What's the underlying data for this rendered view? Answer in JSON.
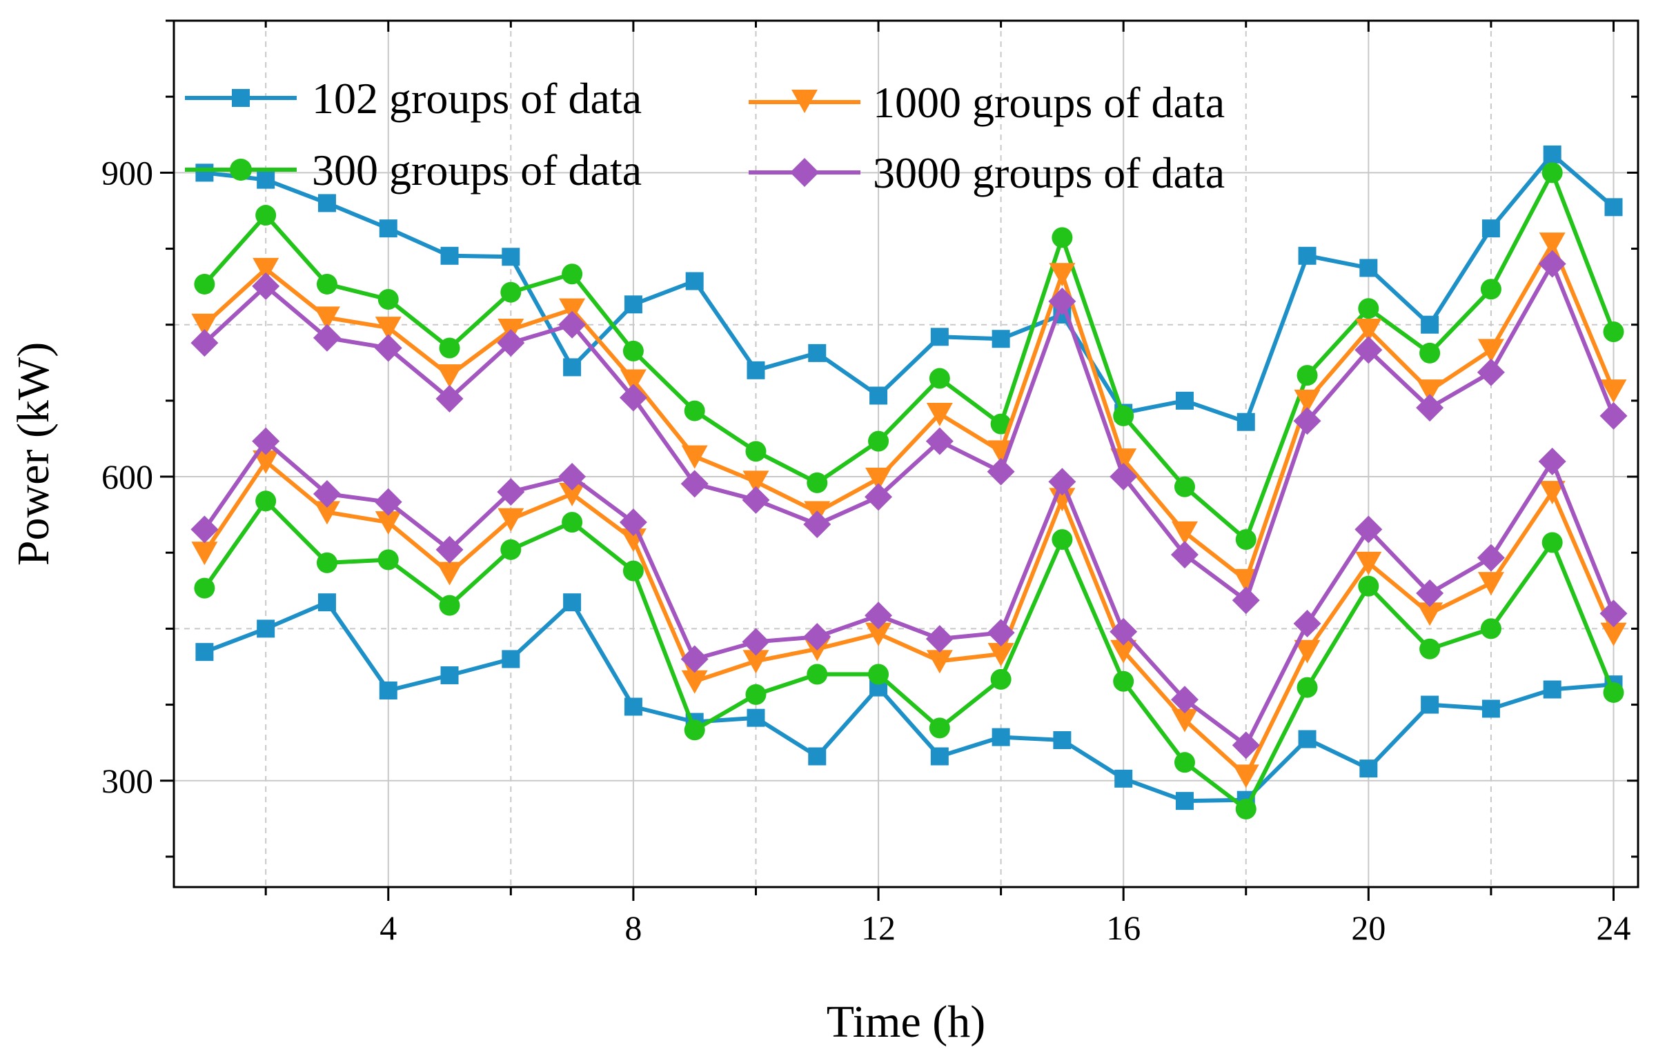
{
  "chart_data": {
    "type": "line",
    "title": "",
    "xlabel": "Time (h)",
    "ylabel": "Power (kW)",
    "xlim": [
      0.5,
      24.4
    ],
    "ylim": [
      195,
      1050
    ],
    "x_ticks": [
      4,
      8,
      12,
      16,
      20,
      24
    ],
    "x_tick_labels": [
      "4",
      "8",
      "12",
      "16",
      "20",
      "24"
    ],
    "y_ticks": [
      300,
      600,
      900
    ],
    "y_tick_labels": [
      "300",
      "600",
      "900"
    ],
    "grid": true,
    "legend_position": "top-left",
    "x": [
      1,
      2,
      3,
      4,
      5,
      6,
      7,
      8,
      9,
      10,
      11,
      12,
      13,
      14,
      15,
      16,
      17,
      18,
      19,
      20,
      21,
      22,
      23,
      24
    ],
    "series": [
      {
        "name": "102 groups of data",
        "color": "#1E90C8",
        "marker": "square",
        "group": "upper",
        "values": [
          900,
          893,
          870,
          845,
          818,
          817,
          708,
          770,
          793,
          705,
          722,
          680,
          738,
          736,
          760,
          663,
          675,
          654,
          818,
          806,
          750,
          845,
          918,
          866
        ]
      },
      {
        "name": "102 groups of data",
        "color": "#1E90C8",
        "marker": "square",
        "group": "lower",
        "values": [
          427,
          450,
          476,
          389,
          404,
          420,
          476,
          373,
          358,
          362,
          324,
          392,
          324,
          343,
          340,
          302,
          280,
          281,
          341,
          312,
          375,
          371,
          390,
          395
        ]
      },
      {
        "name": "300 groups of data",
        "color": "#22C41A",
        "marker": "circle",
        "group": "upper",
        "values": [
          790,
          858,
          790,
          775,
          727,
          782,
          800,
          724,
          665,
          625,
          594,
          635,
          697,
          652,
          836,
          660,
          590,
          538,
          700,
          766,
          722,
          785,
          900,
          743
        ]
      },
      {
        "name": "300 groups of data",
        "color": "#22C41A",
        "marker": "circle",
        "group": "lower",
        "values": [
          490,
          576,
          515,
          518,
          473,
          528,
          555,
          507,
          350,
          385,
          405,
          405,
          352,
          400,
          538,
          398,
          318,
          272,
          392,
          492,
          430,
          450,
          535,
          387
        ]
      },
      {
        "name": "1000 groups of data",
        "color": "#FF8C1A",
        "marker": "triangle-down",
        "group": "upper",
        "values": [
          750,
          805,
          757,
          747,
          700,
          745,
          765,
          695,
          620,
          595,
          565,
          598,
          662,
          625,
          800,
          617,
          545,
          498,
          675,
          745,
          685,
          725,
          830,
          685
        ]
      },
      {
        "name": "1000 groups of data",
        "color": "#FF8C1A",
        "marker": "triangle-down",
        "group": "lower",
        "values": [
          525,
          615,
          565,
          555,
          505,
          558,
          583,
          538,
          398,
          418,
          430,
          445,
          418,
          425,
          578,
          428,
          360,
          305,
          428,
          515,
          465,
          495,
          585,
          445
        ]
      },
      {
        "name": "3000 groups of data",
        "color": "#A356C0",
        "marker": "diamond",
        "group": "upper",
        "values": [
          732,
          788,
          737,
          727,
          677,
          732,
          750,
          678,
          593,
          577,
          553,
          580,
          635,
          605,
          773,
          600,
          523,
          478,
          655,
          725,
          668,
          703,
          810,
          660
        ]
      },
      {
        "name": "3000 groups of data",
        "color": "#A356C0",
        "marker": "diamond",
        "group": "lower",
        "values": [
          548,
          635,
          583,
          575,
          528,
          585,
          600,
          555,
          420,
          437,
          442,
          463,
          440,
          446,
          595,
          447,
          380,
          335,
          455,
          548,
          485,
          520,
          615,
          465
        ]
      }
    ]
  },
  "legend": {
    "items": [
      {
        "label": "102 groups of data",
        "color": "#1E90C8",
        "marker": "square"
      },
      {
        "label": "1000 groups of data",
        "color": "#FF8C1A",
        "marker": "triangle-down"
      },
      {
        "label": "300 groups of data",
        "color": "#22C41A",
        "marker": "circle"
      },
      {
        "label": "3000 groups of data",
        "color": "#A356C0",
        "marker": "diamond"
      }
    ]
  }
}
